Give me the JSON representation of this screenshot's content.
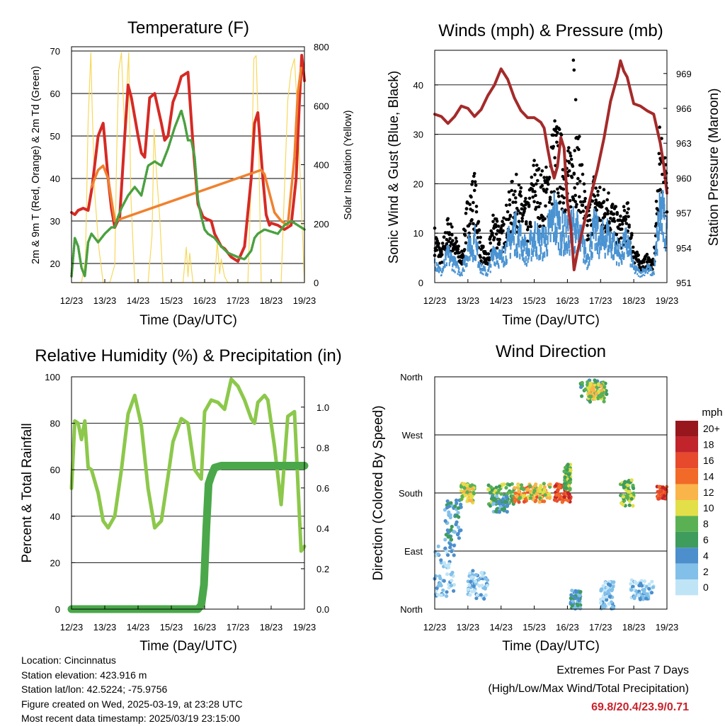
{
  "chart_data": [
    {
      "id": "temperature",
      "type": "line",
      "title": "Temperature (F)",
      "xlabel": "Time (Day/UTC)",
      "ylabel": "2m & 9m T (Red, Orange) & 2m Td (Green)",
      "y2label": "Solar Insolation (Yellow)",
      "x_ticks": [
        "12/23",
        "13/23",
        "14/23",
        "15/23",
        "16/23",
        "17/23",
        "18/23",
        "19/23"
      ],
      "y_ticks": [
        20,
        30,
        40,
        50,
        60,
        70
      ],
      "y2_ticks": [
        0,
        200,
        400,
        600,
        800
      ],
      "xlim": [
        0,
        7
      ],
      "ylim": [
        15.5,
        71
      ],
      "y2lim": [
        0,
        800
      ],
      "grid": true,
      "series": [
        {
          "color": "#d62a24",
          "x": [
            0,
            0.1,
            0.2,
            0.35,
            0.5,
            0.62,
            0.8,
            0.95,
            1.0,
            1.1,
            1.2,
            1.3,
            1.45,
            1.6,
            1.7,
            1.8,
            2.0,
            2.1,
            2.2,
            2.35,
            2.5,
            2.7,
            2.8,
            2.9,
            3.05,
            3.15,
            3.3,
            3.5,
            3.65,
            3.8,
            3.95,
            4.05,
            4.2,
            4.3,
            4.4,
            4.5,
            4.6,
            4.8,
            5.0,
            5.2,
            5.4,
            5.5,
            5.6,
            5.75,
            5.85,
            5.95,
            6.0,
            6.2,
            6.4,
            6.6,
            6.75,
            6.85,
            6.92,
            7.0
          ],
          "values": [
            32,
            31.5,
            32.5,
            33,
            32.5,
            38,
            50,
            53,
            49,
            40,
            33,
            28.5,
            31,
            50,
            62,
            59,
            50,
            46,
            45,
            59,
            60,
            53,
            49,
            50,
            58,
            60,
            64,
            65,
            48,
            34,
            31,
            30.5,
            30,
            27,
            25.5,
            24,
            23.5,
            21.5,
            20.5,
            24,
            40,
            53,
            55.5,
            40,
            31.5,
            29,
            29.5,
            29,
            28,
            29,
            40,
            58,
            69,
            63
          ]
        },
        {
          "color": "#f0812f",
          "x": [
            0.6,
            0.8,
            0.95,
            1.1,
            1.2,
            1.3,
            5.7,
            5.8,
            5.9,
            6.1,
            6.3,
            6.5,
            6.7,
            6.8,
            6.9
          ],
          "values": [
            38,
            42,
            43,
            40,
            35,
            30,
            42,
            41,
            38,
            32,
            30,
            29,
            45,
            60,
            66
          ]
        },
        {
          "color": "#4aa040",
          "x": [
            0,
            0.1,
            0.2,
            0.3,
            0.4,
            0.5,
            0.6,
            0.8,
            1.0,
            1.2,
            1.3,
            1.4,
            1.5,
            1.7,
            1.9,
            2.1,
            2.3,
            2.5,
            2.7,
            2.9,
            3.1,
            3.3,
            3.4,
            3.5,
            3.6,
            3.7,
            3.8,
            3.9,
            4.0,
            4.1,
            4.3,
            4.5,
            4.7,
            5.0,
            5.2,
            5.4,
            5.5,
            5.6,
            5.8,
            6.0,
            6.2,
            6.4,
            6.6,
            6.8,
            7.0
          ],
          "values": [
            17,
            26,
            24,
            19,
            17,
            25,
            27,
            25,
            27,
            28.5,
            28.5,
            31,
            33,
            36,
            38,
            36,
            43,
            44,
            43,
            47,
            52,
            56,
            53,
            49,
            49,
            45,
            35,
            31,
            28,
            27,
            26,
            24,
            22.5,
            21.5,
            21,
            23,
            26,
            27,
            28,
            27.5,
            27,
            29,
            30,
            29,
            28
          ]
        }
      ],
      "y2_series": {
        "color": "#f7d85a",
        "x": [
          0,
          0.3,
          0.42,
          0.5,
          0.58,
          0.62,
          0.7,
          0.82,
          0.95,
          1.15,
          1.3,
          1.36,
          1.42,
          1.5,
          1.6,
          1.68,
          1.72,
          1.78,
          1.9,
          2.3,
          2.42,
          2.48,
          2.55,
          2.65,
          2.75,
          3.0,
          3.35,
          3.45,
          3.5,
          3.55,
          3.65,
          4.3,
          4.38,
          4.45,
          4.5,
          4.6,
          4.7,
          5.3,
          5.4,
          5.48,
          5.55,
          5.62,
          5.7,
          6.3,
          6.4,
          6.5,
          6.6,
          6.7,
          6.8,
          7.0
        ],
        "values": [
          0,
          0,
          80,
          550,
          780,
          600,
          300,
          120,
          0,
          0,
          60,
          450,
          720,
          780,
          500,
          700,
          780,
          300,
          0,
          0,
          160,
          520,
          380,
          220,
          0,
          0,
          0,
          120,
          20,
          100,
          0,
          0,
          140,
          30,
          80,
          20,
          0,
          0,
          350,
          760,
          770,
          500,
          0,
          0,
          320,
          620,
          720,
          760,
          560,
          0
        ]
      }
    },
    {
      "id": "winds",
      "type": "scatter",
      "title": "Winds (mph) & Pressure (mb)",
      "xlabel": "Time (Day/UTC)",
      "ylabel": "Sonic Wind & Gust (Blue, Black)",
      "y2label": "Station Pressure (Maroon)",
      "x_ticks": [
        "12/23",
        "13/23",
        "14/23",
        "15/23",
        "16/23",
        "17/23",
        "18/23",
        "19/23"
      ],
      "y_ticks": [
        0,
        10,
        20,
        30,
        40
      ],
      "y2_ticks": [
        951,
        954,
        957,
        960,
        963,
        966,
        969
      ],
      "xlim": [
        0,
        7
      ],
      "ylim": [
        0,
        47
      ],
      "y2lim": [
        951,
        971
      ],
      "grid": true,
      "wind": {
        "color": "#4a93d2",
        "x": [
          0,
          0.2,
          0.4,
          0.6,
          0.8,
          1.0,
          1.2,
          1.4,
          1.6,
          1.8,
          2.0,
          2.2,
          2.4,
          2.6,
          2.8,
          3.0,
          3.2,
          3.4,
          3.6,
          3.8,
          4.0,
          4.2,
          4.4,
          4.6,
          4.8,
          5.0,
          5.2,
          5.4,
          5.6,
          5.8,
          6.0,
          6.2,
          6.4,
          6.6,
          6.8,
          7.0
        ],
        "values": [
          5,
          2,
          6,
          4,
          2,
          7,
          9,
          3,
          2,
          7,
          5,
          8,
          11,
          9,
          6,
          10,
          8,
          10,
          14,
          11,
          10,
          12,
          9,
          5,
          11,
          9,
          10,
          8,
          6,
          9,
          3,
          2,
          3,
          2,
          16,
          10
        ]
      },
      "gust": {
        "color": "#000000",
        "x": [
          0,
          0.2,
          0.4,
          0.6,
          0.8,
          1.0,
          1.2,
          1.4,
          1.6,
          1.8,
          2.0,
          2.2,
          2.4,
          2.6,
          2.8,
          3.0,
          3.2,
          3.4,
          3.6,
          3.8,
          4.0,
          4.2,
          4.4,
          4.6,
          4.8,
          5.0,
          5.2,
          5.4,
          5.6,
          5.8,
          6.0,
          6.2,
          6.4,
          6.6,
          6.8,
          7.0
        ],
        "values": [
          10,
          6,
          12,
          9,
          5,
          16,
          20,
          7,
          5,
          14,
          10,
          15,
          20,
          17,
          14,
          23,
          20,
          21,
          30,
          27,
          23,
          29,
          25,
          12,
          20,
          17,
          18,
          14,
          12,
          15,
          7,
          4,
          5,
          4,
          30,
          20
        ],
        "max_x": [
          4.18,
          4.2,
          4.25
        ],
        "max_values": [
          45,
          43,
          37
        ]
      },
      "pressure": {
        "color": "#a52a2a",
        "x": [
          0,
          0.2,
          0.4,
          0.6,
          0.8,
          1.0,
          1.2,
          1.4,
          1.6,
          1.8,
          2.0,
          2.2,
          2.4,
          2.6,
          2.8,
          3.0,
          3.2,
          3.3,
          3.4,
          3.5,
          3.6,
          3.7,
          3.8,
          3.9,
          4.0,
          4.1,
          4.2,
          4.3,
          4.5,
          4.7,
          4.9,
          5.1,
          5.3,
          5.5,
          5.6,
          5.7,
          5.8,
          6.0,
          6.2,
          6.4,
          6.6,
          6.8,
          6.9,
          7.0
        ],
        "values": [
          965.5,
          965.3,
          964.7,
          965.3,
          966.2,
          966.0,
          965.3,
          965.9,
          967.1,
          968.0,
          969.4,
          968.5,
          966.9,
          965.8,
          965.2,
          965.2,
          964.8,
          964.3,
          962.6,
          961.1,
          960.0,
          961.0,
          963.5,
          962.6,
          957.9,
          955.9,
          952.1,
          953.6,
          956.1,
          958.4,
          960.7,
          963.4,
          966.6,
          968.7,
          970.1,
          969.2,
          968.7,
          966.4,
          966.2,
          965.8,
          965.5,
          963.0,
          961.2,
          958.7
        ]
      }
    },
    {
      "id": "rh_precip",
      "type": "line",
      "title": "Relative Humidity (%) & Precipitation (in)",
      "xlabel": "Time (Day/UTC)",
      "ylabel": "Percent & Total Rainfall",
      "x_ticks": [
        "12/23",
        "13/23",
        "14/23",
        "15/23",
        "16/23",
        "17/23",
        "18/23",
        "19/23"
      ],
      "y_ticks": [
        0,
        20,
        40,
        60,
        80,
        100
      ],
      "y2_ticks": [
        "0.0",
        "0.2",
        "0.4",
        "0.6",
        "0.8",
        "1.0"
      ],
      "xlim": [
        0,
        7
      ],
      "ylim": [
        0,
        100
      ],
      "y2lim": [
        0,
        1.15
      ],
      "grid": true,
      "rh": {
        "color": "#8cc84b",
        "x": [
          0,
          0.1,
          0.2,
          0.3,
          0.4,
          0.5,
          0.6,
          0.8,
          0.95,
          1.1,
          1.3,
          1.5,
          1.7,
          1.9,
          2.1,
          2.3,
          2.5,
          2.7,
          2.9,
          3.05,
          3.3,
          3.5,
          3.7,
          3.9,
          4.0,
          4.2,
          4.4,
          4.6,
          4.8,
          5.0,
          5.2,
          5.4,
          5.5,
          5.6,
          5.8,
          5.9,
          6.1,
          6.3,
          6.5,
          6.7,
          6.9,
          7.0
        ],
        "values": [
          52,
          81,
          80,
          73,
          81,
          61,
          60,
          50,
          38,
          35,
          40,
          60,
          84,
          92,
          79,
          52,
          35,
          38,
          57,
          72,
          82,
          80,
          60,
          56,
          85,
          90,
          89,
          86,
          99,
          96,
          90,
          82,
          80,
          89,
          92,
          90,
          70,
          45,
          83,
          85,
          25,
          27
        ]
      },
      "precip": {
        "color": "#4aa84a",
        "x": [
          0,
          3.8,
          3.9,
          3.98,
          4.05,
          4.12,
          4.2,
          4.3,
          4.5,
          7.0
        ],
        "values": [
          0,
          0,
          0.02,
          0.12,
          0.4,
          0.62,
          0.66,
          0.7,
          0.71,
          0.71
        ]
      }
    },
    {
      "id": "wind_direction",
      "type": "scatter",
      "title": "Wind Direction",
      "xlabel": "Time (Day/UTC)",
      "ylabel": "Direction (Colored By Speed)",
      "x_ticks": [
        "12/23",
        "13/23",
        "14/23",
        "15/23",
        "16/23",
        "17/23",
        "18/23",
        "19/23"
      ],
      "y_ticks": [
        "North",
        "East",
        "South",
        "West",
        "North"
      ],
      "y_tick_degrees": [
        0,
        90,
        180,
        270,
        360
      ],
      "xlim": [
        0,
        7
      ],
      "ylim": [
        0,
        360
      ],
      "grid": true,
      "clusters": [
        {
          "x": [
            0,
            0.6
          ],
          "dir": [
            20,
            100
          ],
          "speed": 2
        },
        {
          "x": [
            0.3,
            0.8
          ],
          "dir": [
            100,
            170
          ],
          "speed": 4
        },
        {
          "x": [
            0.8,
            1.2
          ],
          "dir": [
            165,
            195
          ],
          "speed": 10
        },
        {
          "x": [
            1.0,
            1.6
          ],
          "dir": [
            15,
            60
          ],
          "speed": 2
        },
        {
          "x": [
            1.6,
            2.4
          ],
          "dir": [
            160,
            195
          ],
          "speed": 8
        },
        {
          "x": [
            1.7,
            2.2
          ],
          "dir": [
            150,
            175
          ],
          "speed": 4
        },
        {
          "x": [
            2.4,
            3.4
          ],
          "dir": [
            165,
            190
          ],
          "speed": 14
        },
        {
          "x": [
            2.5,
            3.5
          ],
          "dir": [
            170,
            195
          ],
          "speed": 10
        },
        {
          "x": [
            3.6,
            4.1
          ],
          "dir": [
            165,
            195
          ],
          "speed": 16
        },
        {
          "x": [
            3.9,
            4.1
          ],
          "dir": [
            185,
            225
          ],
          "speed": 8
        },
        {
          "x": [
            4.1,
            4.4
          ],
          "dir": [
            0,
            30
          ],
          "speed": 4
        },
        {
          "x": [
            4.4,
            5.2
          ],
          "dir": [
            320,
            355
          ],
          "speed": 6
        },
        {
          "x": [
            4.6,
            5.1
          ],
          "dir": [
            325,
            350
          ],
          "speed": 10
        },
        {
          "x": [
            5.0,
            5.4
          ],
          "dir": [
            0,
            45
          ],
          "speed": 2
        },
        {
          "x": [
            5.6,
            6.0
          ],
          "dir": [
            160,
            200
          ],
          "speed": 8
        },
        {
          "x": [
            5.9,
            6.6
          ],
          "dir": [
            15,
            45
          ],
          "speed": 2
        },
        {
          "x": [
            6.7,
            7.0
          ],
          "dir": [
            170,
            190
          ],
          "speed": 16
        }
      ],
      "legend": {
        "title": "mph",
        "placement": "right",
        "labels": [
          "0",
          "2",
          "4",
          "6",
          "8",
          "10",
          "12",
          "14",
          "16",
          "18",
          "20+"
        ],
        "colors": [
          "#bfe4f6",
          "#82c0ea",
          "#4c8fcc",
          "#3e9c5c",
          "#5ab154",
          "#e3df48",
          "#f9b44a",
          "#f16a27",
          "#e7492d",
          "#c1242a",
          "#97171d"
        ]
      }
    }
  ],
  "info": {
    "location": "Location: Cincinnatus",
    "elevation": "Station elevation: 423.916 m",
    "latlon": "Station lat/lon: 42.5224; -75.9756",
    "created": "Figure created on Wed, 2025-03-19, at 23:28 UTC",
    "recent": "Most recent data timestamp: 2025/03/19 23:15:00"
  },
  "extremes": {
    "title": "Extremes For Past 7 Days",
    "subtitle": "(High/Low/Max Wind/Total Precipitation)",
    "values": "69.8/20.4/23.9/0.71"
  }
}
